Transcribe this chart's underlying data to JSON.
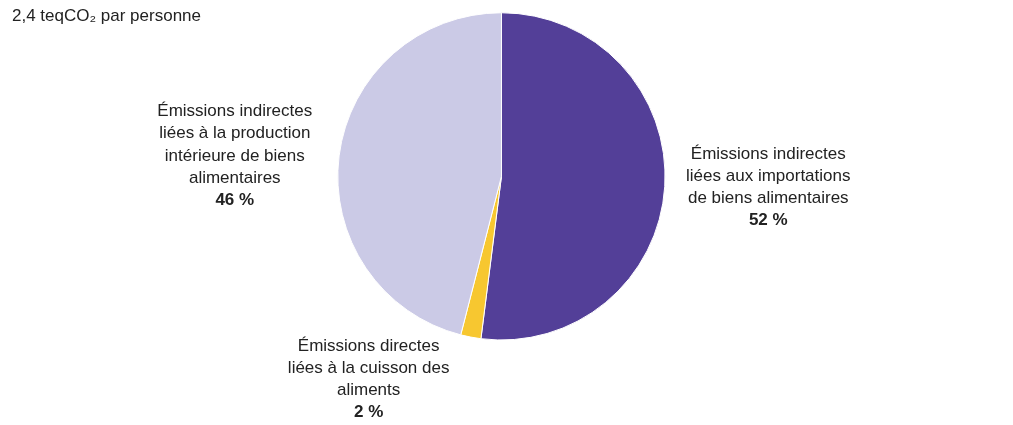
{
  "chart_data": {
    "type": "pie",
    "title": "2,4 teqCO₂ par personne",
    "categories": [
      "Émissions indirectes liées aux importations de biens alimentaires",
      "Émissions directes liées à la cuisson des aliments",
      "Émissions indirectes liées à la production intérieure de biens alimentaires"
    ],
    "values": [
      52,
      2,
      46
    ],
    "value_labels": [
      "52 %",
      "2 %",
      "46 %"
    ],
    "colors": [
      "#533f98",
      "#f7c730",
      "#cbcae6"
    ]
  }
}
